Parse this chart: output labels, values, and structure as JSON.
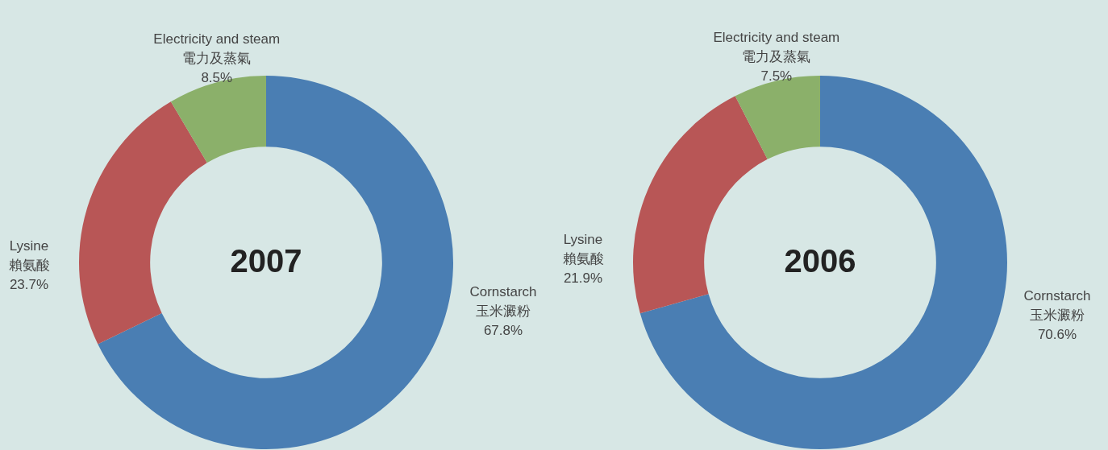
{
  "chart_data": [
    {
      "type": "donut",
      "title": "2007",
      "categories": [
        "Cornstarch\n玉米澱粉",
        "Lysine\n賴氨酸",
        "Electricity and steam\n電力及蒸氣"
      ],
      "values": [
        67.8,
        23.7,
        8.5
      ],
      "colors": [
        "#4a7eb3",
        "#b85656",
        "#8bb06a"
      ],
      "value_labels": [
        "67.8%",
        "23.7%",
        "8.5%"
      ]
    },
    {
      "type": "donut",
      "title": "2006",
      "categories": [
        "Cornstarch\n玉米澱粉",
        "Lysine\n賴氨酸",
        "Electricity and steam\n電力及蒸氣"
      ],
      "values": [
        70.6,
        21.9,
        7.5
      ],
      "colors": [
        "#4a7eb3",
        "#b85656",
        "#8bb06a"
      ],
      "value_labels": [
        "70.6%",
        "21.9%",
        "7.5%"
      ]
    }
  ]
}
